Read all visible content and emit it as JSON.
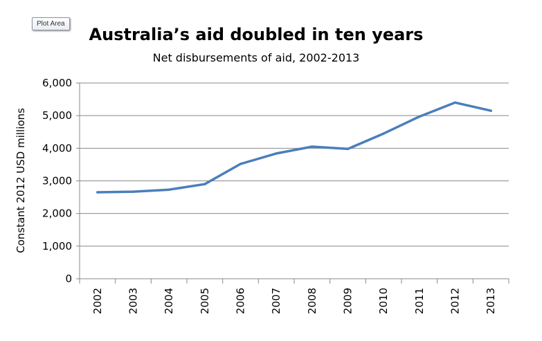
{
  "tooltip": "Plot Area",
  "chart_data": {
    "type": "line",
    "title": "Australia’s aid doubled in ten years",
    "subtitle": "Net disbursements  of aid, 2002-2013",
    "xlabel": "",
    "ylabel": "Constant 2012 USD millions",
    "categories": [
      "2002",
      "2003",
      "2004",
      "2005",
      "2006",
      "2007",
      "2008",
      "2009",
      "2010",
      "2011",
      "2012",
      "2013"
    ],
    "series": [
      {
        "name": "Net disbursements of aid",
        "values": [
          2650,
          2670,
          2730,
          2900,
          3520,
          3840,
          4050,
          3980,
          4450,
          4970,
          5400,
          5150
        ]
      }
    ],
    "yticks": [
      "0",
      "1,000",
      "2,000",
      "3,000",
      "4,000",
      "5,000",
      "6,000"
    ],
    "ylim": [
      0,
      6000
    ],
    "grid": true,
    "legend": "none",
    "line_color": "#4a7ebb"
  }
}
